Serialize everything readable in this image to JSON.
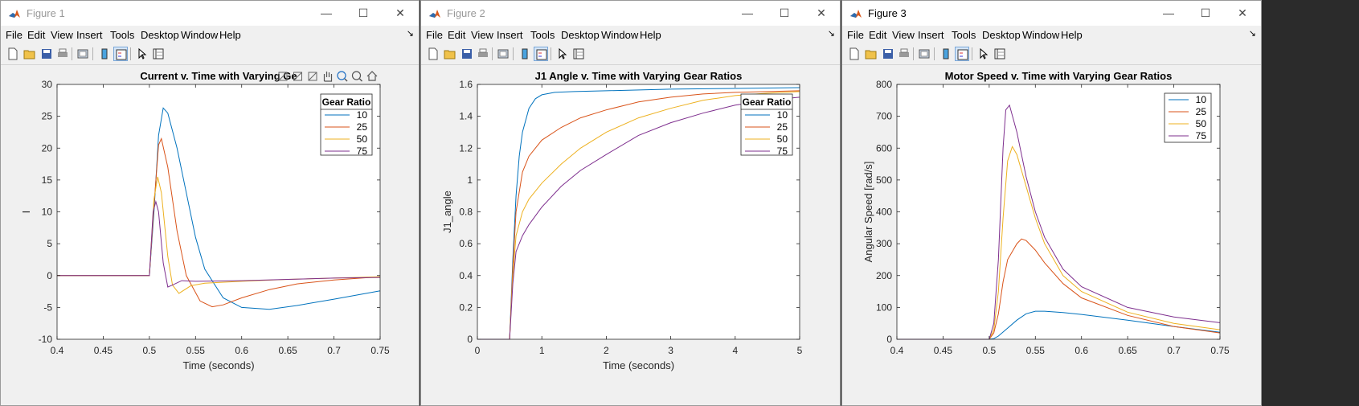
{
  "windows": [
    {
      "title": "Figure 1",
      "active": false,
      "menu": [
        "File",
        "Edit",
        "View",
        "Insert",
        "Tools",
        "Desktop",
        "Window",
        "Help"
      ],
      "chart_data": {
        "type": "line",
        "title": "Current v. Time with Varying Ge",
        "xlabel": "Time (seconds)",
        "ylabel": "I",
        "xlim": [
          0.4,
          0.75
        ],
        "ylim": [
          -10,
          30
        ],
        "xticks": [
          "0.4",
          "0.45",
          "0.5",
          "0.55",
          "0.6",
          "0.65",
          "0.7",
          "0.75"
        ],
        "yticks": [
          "-10",
          "-5",
          "0",
          "5",
          "10",
          "15",
          "20",
          "25",
          "30"
        ],
        "legend_title": "Gear Ratio",
        "legend_position": "top-right",
        "series": [
          {
            "name": "10",
            "color": "#0072BD",
            "x": [
              0.4,
              0.5,
              0.505,
              0.51,
              0.515,
              0.52,
              0.53,
              0.54,
              0.55,
              0.56,
              0.58,
              0.6,
              0.63,
              0.66,
              0.7,
              0.75
            ],
            "y": [
              0,
              0,
              10,
              22,
              26.3,
              25.5,
              20,
              13,
              6,
              1,
              -3.5,
              -5,
              -5.3,
              -4.7,
              -3.7,
              -2.4
            ]
          },
          {
            "name": "25",
            "color": "#D95319",
            "x": [
              0.4,
              0.5,
              0.505,
              0.51,
              0.513,
              0.52,
              0.53,
              0.54,
              0.555,
              0.568,
              0.58,
              0.6,
              0.63,
              0.66,
              0.7,
              0.75
            ],
            "y": [
              0,
              0,
              11,
              20.5,
              21.5,
              17,
              7,
              0,
              -4,
              -4.9,
              -4.6,
              -3.5,
              -2.2,
              -1.3,
              -0.7,
              -0.2
            ]
          },
          {
            "name": "50",
            "color": "#EDB120",
            "x": [
              0.4,
              0.5,
              0.505,
              0.509,
              0.513,
              0.52,
              0.525,
              0.532,
              0.545,
              0.56,
              0.6,
              0.65,
              0.7,
              0.75
            ],
            "y": [
              0,
              0,
              12,
              15.5,
              13,
              3,
              -1.5,
              -2.8,
              -1.6,
              -1.2,
              -0.9,
              -0.6,
              -0.4,
              -0.2
            ]
          },
          {
            "name": "75",
            "color": "#7E2F8E",
            "x": [
              0.4,
              0.5,
              0.504,
              0.507,
              0.51,
              0.515,
              0.52,
              0.525,
              0.535,
              0.55,
              0.6,
              0.65,
              0.7,
              0.75
            ],
            "y": [
              0,
              0,
              10,
              11.6,
              10,
              2,
              -1.8,
              -1.5,
              -0.8,
              -0.9,
              -0.8,
              -0.6,
              -0.4,
              -0.3
            ]
          }
        ]
      }
    },
    {
      "title": "Figure 2",
      "active": false,
      "menu": [
        "File",
        "Edit",
        "View",
        "Insert",
        "Tools",
        "Desktop",
        "Window",
        "Help"
      ],
      "chart_data": {
        "type": "line",
        "title": "J1 Angle v. Time with Varying Gear Ratios",
        "xlabel": "Time (seconds)",
        "ylabel": "J1_angle",
        "xlim": [
          0,
          5
        ],
        "ylim": [
          0,
          1.6
        ],
        "xticks": [
          "0",
          "1",
          "2",
          "3",
          "4",
          "5"
        ],
        "yticks": [
          "0",
          "0.2",
          "0.4",
          "0.6",
          "0.8",
          "1",
          "1.2",
          "1.4",
          "1.6"
        ],
        "legend_title": "Gear Ratio",
        "legend_position": "top-right",
        "series": [
          {
            "name": "10",
            "color": "#0072BD",
            "x": [
              0,
              0.5,
              0.55,
              0.6,
              0.65,
              0.7,
              0.8,
              0.9,
              1.0,
              1.2,
              1.5,
              2,
              3,
              4,
              5
            ],
            "y": [
              0,
              0,
              0.5,
              0.9,
              1.15,
              1.3,
              1.45,
              1.51,
              1.535,
              1.55,
              1.555,
              1.56,
              1.57,
              1.575,
              1.58
            ]
          },
          {
            "name": "25",
            "color": "#D95319",
            "x": [
              0,
              0.5,
              0.55,
              0.6,
              0.7,
              0.8,
              1.0,
              1.3,
              1.6,
              2,
              2.5,
              3,
              3.5,
              4,
              4.5,
              5
            ],
            "y": [
              0,
              0,
              0.45,
              0.8,
              1.05,
              1.15,
              1.25,
              1.33,
              1.39,
              1.44,
              1.49,
              1.52,
              1.54,
              1.55,
              1.555,
              1.56
            ]
          },
          {
            "name": "50",
            "color": "#EDB120",
            "x": [
              0,
              0.5,
              0.55,
              0.6,
              0.7,
              0.8,
              1.0,
              1.3,
              1.6,
              2,
              2.5,
              3,
              3.5,
              4,
              4.5,
              5
            ],
            "y": [
              0,
              0,
              0.4,
              0.65,
              0.8,
              0.88,
              0.98,
              1.1,
              1.2,
              1.3,
              1.39,
              1.45,
              1.5,
              1.53,
              1.545,
              1.555
            ]
          },
          {
            "name": "75",
            "color": "#7E2F8E",
            "x": [
              0,
              0.5,
              0.55,
              0.6,
              0.7,
              0.8,
              1.0,
              1.3,
              1.6,
              2,
              2.5,
              3,
              3.5,
              4,
              4.5,
              5
            ],
            "y": [
              0,
              0,
              0.35,
              0.55,
              0.65,
              0.72,
              0.83,
              0.96,
              1.06,
              1.16,
              1.28,
              1.36,
              1.42,
              1.47,
              1.5,
              1.52
            ]
          }
        ]
      }
    },
    {
      "title": "Figure 3",
      "active": true,
      "menu": [
        "File",
        "Edit",
        "View",
        "Insert",
        "Tools",
        "Desktop",
        "Window",
        "Help"
      ],
      "chart_data": {
        "type": "line",
        "title": "Motor Speed v. Time with Varying Gear Ratios",
        "xlabel": "",
        "ylabel": "Angular Speed [rad/s]",
        "xlim": [
          0.4,
          0.75
        ],
        "ylim": [
          0,
          800
        ],
        "xticks": [
          "0.4",
          "0.45",
          "0.5",
          "0.55",
          "0.6",
          "0.65",
          "0.7",
          "0.75"
        ],
        "yticks": [
          "0",
          "100",
          "200",
          "300",
          "400",
          "500",
          "600",
          "700",
          "800"
        ],
        "legend_title": "",
        "legend_position": "top-right",
        "series": [
          {
            "name": "10",
            "color": "#0072BD",
            "x": [
              0.4,
              0.5,
              0.505,
              0.51,
              0.52,
              0.53,
              0.54,
              0.55,
              0.56,
              0.58,
              0.6,
              0.65,
              0.7,
              0.75
            ],
            "y": [
              0,
              0,
              2,
              10,
              35,
              60,
              80,
              88,
              88,
              84,
              78,
              60,
              40,
              22
            ]
          },
          {
            "name": "25",
            "color": "#D95319",
            "x": [
              0.4,
              0.5,
              0.505,
              0.51,
              0.515,
              0.52,
              0.53,
              0.535,
              0.54,
              0.55,
              0.56,
              0.58,
              0.6,
              0.65,
              0.7,
              0.75
            ],
            "y": [
              0,
              0,
              20,
              80,
              180,
              250,
              300,
              315,
              310,
              280,
              240,
              175,
              130,
              75,
              40,
              20
            ]
          },
          {
            "name": "50",
            "color": "#EDB120",
            "x": [
              0.4,
              0.5,
              0.505,
              0.51,
              0.515,
              0.52,
              0.525,
              0.53,
              0.54,
              0.55,
              0.56,
              0.58,
              0.6,
              0.65,
              0.7,
              0.75
            ],
            "y": [
              0,
              0,
              30,
              150,
              380,
              560,
              605,
              580,
              480,
              380,
              300,
              200,
              150,
              85,
              50,
              30
            ]
          },
          {
            "name": "75",
            "color": "#7E2F8E",
            "x": [
              0.4,
              0.5,
              0.505,
              0.51,
              0.515,
              0.518,
              0.522,
              0.53,
              0.54,
              0.55,
              0.56,
              0.58,
              0.6,
              0.65,
              0.7,
              0.75
            ],
            "y": [
              0,
              0,
              50,
              250,
              600,
              720,
              735,
              650,
              510,
              400,
              320,
              220,
              165,
              100,
              70,
              52
            ]
          }
        ]
      }
    }
  ]
}
